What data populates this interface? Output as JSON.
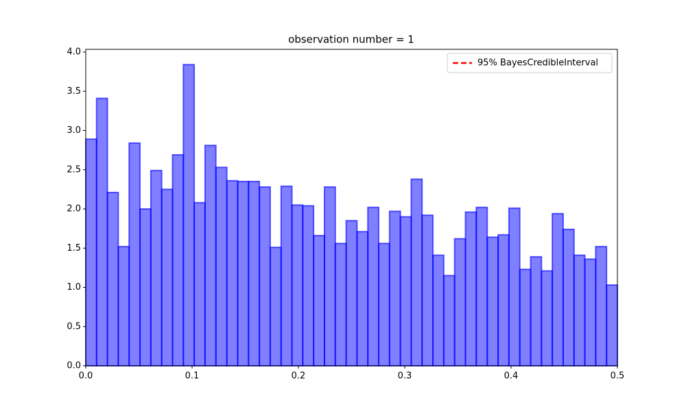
{
  "chart_data": {
    "type": "histogram",
    "title": "observation number = 1",
    "bins": [
      0,
      0.0102,
      0.0204,
      0.0306,
      0.0408,
      0.051,
      0.0612,
      0.0714,
      0.0816,
      0.0918,
      0.102,
      0.1122,
      0.1224,
      0.1327,
      0.1429,
      0.1531,
      0.1633,
      0.1735,
      0.1837,
      0.1939,
      0.2041,
      0.2143,
      0.2245,
      0.2347,
      0.2449,
      0.2551,
      0.2653,
      0.2755,
      0.2857,
      0.2959,
      0.3061,
      0.3163,
      0.3265,
      0.3367,
      0.3469,
      0.3571,
      0.3673,
      0.3776,
      0.3878,
      0.398,
      0.4082,
      0.4184,
      0.4286,
      0.4388,
      0.449,
      0.4592,
      0.4694,
      0.4796,
      0.4898,
      0.5
    ],
    "values": [
      2.89,
      3.41,
      2.21,
      1.52,
      2.84,
      2.0,
      2.49,
      2.25,
      2.69,
      3.84,
      2.08,
      2.81,
      2.53,
      2.36,
      2.35,
      2.35,
      2.28,
      1.51,
      2.29,
      2.05,
      2.04,
      1.66,
      2.28,
      1.56,
      1.85,
      1.71,
      2.02,
      1.56,
      1.97,
      1.9,
      2.38,
      1.92,
      1.41,
      1.15,
      1.62,
      1.96,
      2.02,
      1.64,
      1.67,
      2.01,
      1.23,
      1.39,
      1.21,
      1.94,
      1.74,
      1.41,
      1.36,
      1.52,
      1.03
    ],
    "color": "blue",
    "xlim": [
      0,
      0.5
    ],
    "xticks": [
      {
        "value": 0,
        "label": "0.0"
      },
      0.1,
      0.2,
      0.3,
      0.4,
      0.5
    ],
    "ylim": [
      0,
      4.035
    ],
    "yticks": [
      {
        "value": 0,
        "label": "0.0"
      },
      0.5,
      {
        "value": 1,
        "label": "1.0"
      },
      1.5,
      {
        "value": 2,
        "label": "2.0"
      },
      2.5,
      {
        "value": 3,
        "label": "3.0"
      },
      3.5,
      {
        "value": 4,
        "label": "4.0"
      }
    ],
    "legend": {
      "loc": "upper right",
      "entries": [
        {
          "label": "95% BayesCredibleInterval",
          "color": "red",
          "style": "dashed"
        }
      ]
    }
  }
}
